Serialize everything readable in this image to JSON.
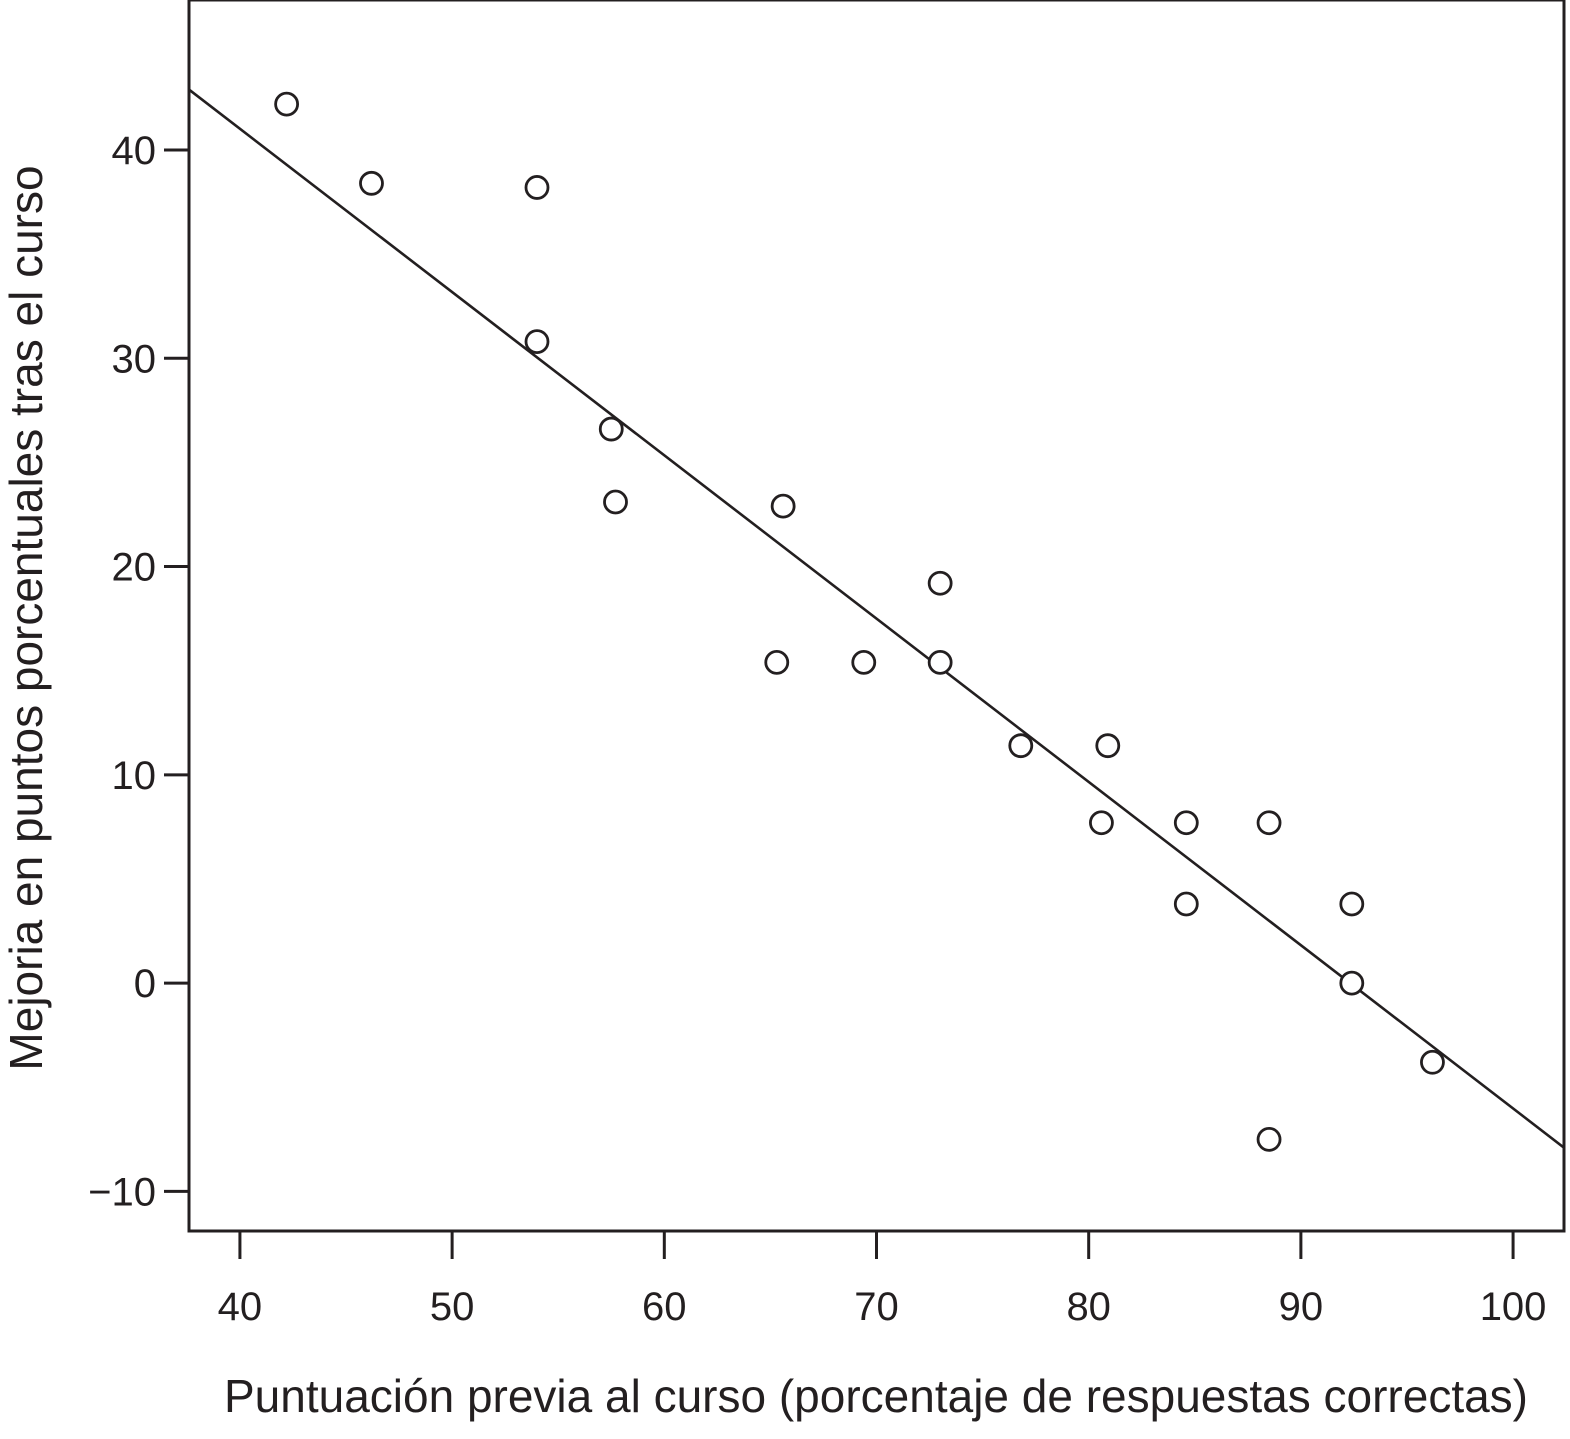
{
  "chart_data": {
    "type": "scatter",
    "title": "",
    "xlabel": "Puntuación previa al curso (porcentaje de respuestas correctas)",
    "ylabel": "Mejoria en puntos porcentuales tras el curso",
    "xlim": [
      37.6,
      102.4
    ],
    "ylim": [
      -11.9,
      47.2
    ],
    "xticks": [
      40,
      50,
      60,
      70,
      80,
      90,
      100
    ],
    "yticks": [
      -10,
      0,
      10,
      20,
      30,
      40
    ],
    "xtick_labels": [
      "40",
      "50",
      "60",
      "70",
      "80",
      "90",
      "100"
    ],
    "ytick_labels": [
      "−10",
      "0",
      "10",
      "20",
      "30",
      "40"
    ],
    "grid": false,
    "legend": "none",
    "marker": "open-circle",
    "color": "#231f20",
    "points": [
      {
        "x": 42.2,
        "y": 42.2
      },
      {
        "x": 46.2,
        "y": 38.4
      },
      {
        "x": 54.0,
        "y": 38.2
      },
      {
        "x": 54.0,
        "y": 30.8
      },
      {
        "x": 57.5,
        "y": 26.6
      },
      {
        "x": 57.7,
        "y": 23.1
      },
      {
        "x": 65.6,
        "y": 22.9
      },
      {
        "x": 65.3,
        "y": 15.4
      },
      {
        "x": 69.4,
        "y": 15.4
      },
      {
        "x": 73.0,
        "y": 19.2
      },
      {
        "x": 73.0,
        "y": 15.4
      },
      {
        "x": 76.8,
        "y": 11.4
      },
      {
        "x": 80.9,
        "y": 11.4
      },
      {
        "x": 80.6,
        "y": 7.7
      },
      {
        "x": 84.6,
        "y": 7.7
      },
      {
        "x": 84.6,
        "y": 3.8
      },
      {
        "x": 88.5,
        "y": 7.7
      },
      {
        "x": 88.5,
        "y": -7.5
      },
      {
        "x": 92.4,
        "y": 3.8
      },
      {
        "x": 92.4,
        "y": 0.0
      },
      {
        "x": 96.2,
        "y": -3.8
      }
    ],
    "regression_line": {
      "x": [
        37.6,
        102.4
      ],
      "y": [
        42.9,
        -7.9
      ]
    }
  }
}
